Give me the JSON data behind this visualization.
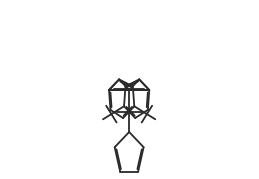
{
  "background_color": "#ffffff",
  "line_color": "#2a2a2a",
  "line_width": 1.3,
  "figure_width": 2.59,
  "figure_height": 1.79,
  "dpi": 100
}
